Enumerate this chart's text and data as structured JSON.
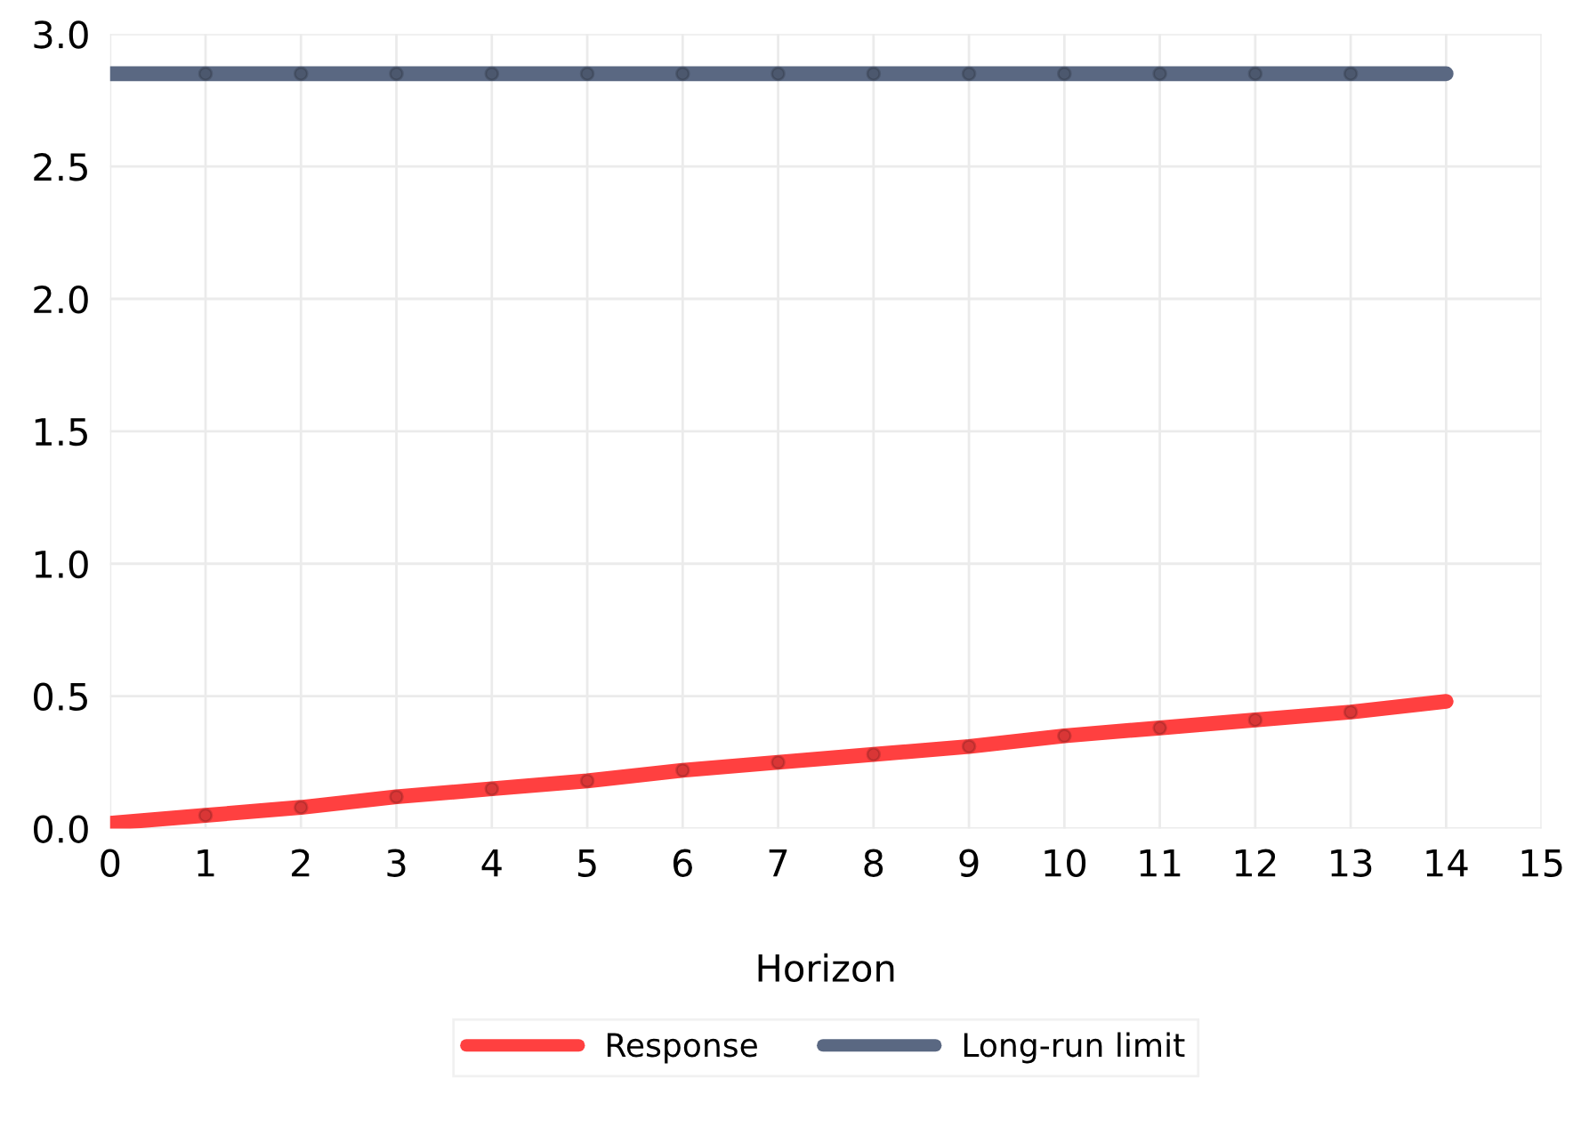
{
  "chart_data": {
    "type": "line",
    "xlabel": "Horizon",
    "x": [
      0,
      1,
      2,
      3,
      4,
      5,
      6,
      7,
      8,
      9,
      10,
      11,
      12,
      13,
      14
    ],
    "series": [
      {
        "name": "Response",
        "color": "#ff4040",
        "values": [
          0.02,
          0.05,
          0.08,
          0.12,
          0.15,
          0.18,
          0.22,
          0.25,
          0.28,
          0.31,
          0.35,
          0.38,
          0.41,
          0.44,
          0.48
        ]
      },
      {
        "name": "Long-run limit",
        "color": "#5a6882",
        "values": [
          2.85,
          2.85,
          2.85,
          2.85,
          2.85,
          2.85,
          2.85,
          2.85,
          2.85,
          2.85,
          2.85,
          2.85,
          2.85,
          2.85,
          2.85
        ]
      }
    ],
    "xlim": [
      0,
      15
    ],
    "xticks": [
      0,
      1,
      2,
      3,
      4,
      5,
      6,
      7,
      8,
      9,
      10,
      11,
      12,
      13,
      14,
      15
    ],
    "ylim": [
      0,
      3
    ],
    "yticks": [
      {
        "value": 0,
        "label": "0.0"
      },
      {
        "value": 0.5,
        "label": "0.5"
      },
      {
        "value": 1,
        "label": "1.0"
      },
      {
        "value": 1.5,
        "label": "1.5"
      },
      {
        "value": 2,
        "label": "2.0"
      },
      {
        "value": 2.5,
        "label": "2.5"
      },
      {
        "value": 3,
        "label": "3.0"
      }
    ],
    "grid": true,
    "legend": "bottom",
    "marker": "circle",
    "line_style": "solid"
  }
}
